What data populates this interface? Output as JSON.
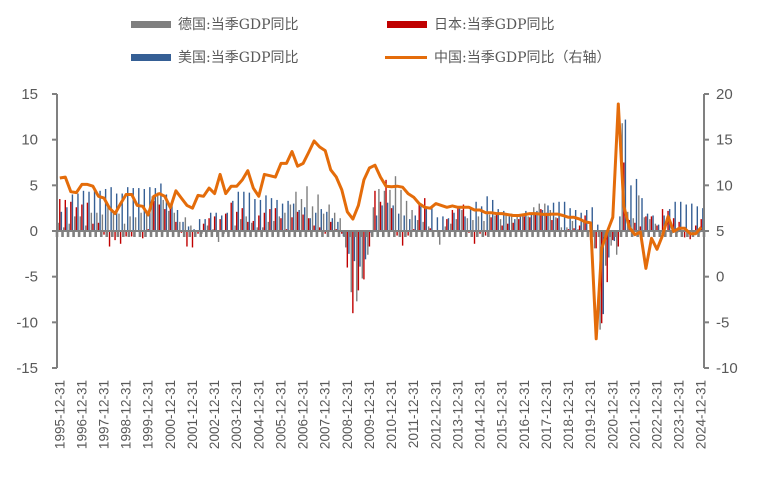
{
  "chart_data": {
    "type": "bar+line",
    "legend": [
      {
        "label": "德国:当季GDP同比",
        "color": "#7f7f7f",
        "kind": "bar"
      },
      {
        "label": "日本:当季GDP同比",
        "color": "#c00000",
        "kind": "bar"
      },
      {
        "label": "美国:当季GDP同比",
        "color": "#355f95",
        "kind": "bar"
      },
      {
        "label": "中国:当季GDP同比（右轴）",
        "color": "#e46c0a",
        "kind": "line"
      }
    ],
    "legend_placement": "top",
    "left_axis": {
      "ylim": [
        -15,
        15
      ],
      "ticks": [
        "15",
        "10",
        "5",
        "0",
        "-5",
        "-10",
        "-15"
      ]
    },
    "right_axis": {
      "ylim": [
        -10,
        20
      ],
      "ticks": [
        "20",
        "15",
        "10",
        "5",
        "0",
        "-5",
        "-10"
      ]
    },
    "x_tick_labels": [
      "1995-12-31",
      "1996-12-31",
      "1997-12-31",
      "1998-12-31",
      "1999-12-31",
      "2000-12-31",
      "2001-12-31",
      "2002-12-31",
      "2003-12-31",
      "2004-12-31",
      "2005-12-31",
      "2006-12-31",
      "2007-12-31",
      "2008-12-31",
      "2009-12-31",
      "2010-12-31",
      "2011-12-31",
      "2012-12-31",
      "2013-12-31",
      "2014-12-31",
      "2015-12-31",
      "2016-12-31",
      "2017-12-31",
      "2018-12-31",
      "2019-12-31",
      "2020-12-31",
      "2021-12-31",
      "2022-12-31",
      "2023-12-31",
      "2024-12-31"
    ],
    "x_range": [
      "1995-12-31",
      "2024-12-31"
    ],
    "x_frequency": "quarterly",
    "grid": false,
    "series": [
      {
        "name": "德国:当季GDP同比",
        "axis": "left",
        "type": "bar",
        "color": "#7f7f7f",
        "values": [
          0.9,
          0.4,
          0.8,
          1.6,
          1.6,
          0.6,
          2.0,
          2.0,
          1.8,
          2.8,
          2.0,
          1.9,
          0.8,
          1.6,
          1.5,
          2.0,
          2.3,
          3.8,
          4.2,
          3.4,
          2.2,
          2.0,
          1.0,
          1.5,
          0.6,
          0.0,
          -0.3,
          0.6,
          0.2,
          -1.2,
          -0.3,
          0.1,
          0.6,
          1.3,
          1.6,
          0.9,
          0.4,
          0.4,
          1.0,
          1.1,
          1.6,
          2.0,
          2.9,
          4.3,
          3.5,
          4.9,
          2.7,
          4.0,
          1.9,
          2.9,
          2.0,
          1.4,
          -1.8,
          -6.7,
          -7.7,
          -5.2,
          -2.6,
          2.6,
          4.6,
          4.4,
          4.5,
          6.0,
          4.5,
          3.3,
          2.3,
          1.2,
          1.0,
          0.5,
          0.0,
          -1.5,
          0.5,
          0.8,
          1.3,
          2.3,
          1.4,
          1.2,
          1.6,
          1.1,
          1.8,
          1.7,
          1.3,
          1.7,
          1.9,
          1.6,
          1.8,
          1.6,
          2.6,
          3.0,
          3.0,
          2.3,
          1.5,
          0.4,
          0.4,
          1.1,
          0.2,
          1.0,
          0.1,
          -1.9,
          -10.8,
          -3.8,
          -1.6,
          -2.6,
          11.8,
          2.1,
          1.4,
          3.9,
          1.5,
          1.3,
          0.8,
          -0.3,
          0.1,
          -0.3,
          -0.2,
          -0.1,
          -0.3,
          -0.3,
          -0.2
        ]
      },
      {
        "name": "日本:当季GDP同比",
        "axis": "left",
        "type": "bar",
        "color": "#c00000",
        "values": [
          3.5,
          3.4,
          3.2,
          2.6,
          2.9,
          3.1,
          0.8,
          0.9,
          -0.4,
          -1.7,
          -1.0,
          -1.4,
          -0.6,
          -0.6,
          0.1,
          -0.8,
          0.2,
          3.3,
          2.9,
          2.4,
          2.5,
          1.0,
          -0.2,
          -1.7,
          -1.8,
          -0.3,
          0.8,
          1.4,
          1.6,
          1.3,
          1.9,
          3.1,
          2.1,
          2.5,
          1.0,
          1.1,
          1.7,
          2.0,
          2.4,
          2.5,
          1.4,
          0.2,
          1.5,
          2.1,
          1.8,
          1.4,
          0.6,
          0.4,
          -0.3,
          1.0,
          0.2,
          -0.3,
          -4.0,
          -9.0,
          -6.5,
          -5.3,
          -1.7,
          4.4,
          3.2,
          5.6,
          2.5,
          -0.5,
          -1.6,
          -0.5,
          0.2,
          3.0,
          3.6,
          0.3,
          0.0,
          0.1,
          1.3,
          2.3,
          2.6,
          2.9,
          -0.2,
          -1.4,
          -0.3,
          -0.5,
          1.5,
          1.8,
          0.6,
          0.8,
          0.9,
          1.3,
          1.6,
          1.5,
          1.8,
          2.4,
          2.0,
          1.2,
          1.4,
          0.1,
          0.2,
          0.3,
          0.6,
          1.7,
          -1.0,
          -1.9,
          -10.1,
          -5.6,
          -1.0,
          -1.7,
          7.5,
          1.2,
          0.9,
          0.5,
          1.6,
          1.6,
          0.6,
          2.4,
          2.2,
          1.4,
          1.0,
          -0.7,
          -0.9,
          0.6,
          1.3
        ]
      },
      {
        "name": "美国:当季GDP同比",
        "axis": "left",
        "type": "bar",
        "color": "#355f95",
        "values": [
          2.1,
          2.6,
          4.0,
          4.1,
          4.4,
          4.3,
          4.6,
          4.4,
          4.6,
          4.8,
          4.1,
          4.1,
          4.8,
          4.7,
          4.7,
          4.6,
          4.8,
          4.7,
          5.2,
          4.0,
          3.0,
          2.3,
          1.0,
          0.5,
          0.2,
          1.3,
          1.3,
          2.0,
          2.0,
          1.7,
          2.0,
          3.3,
          4.3,
          4.3,
          4.2,
          3.5,
          3.4,
          3.9,
          3.6,
          3.4,
          3.0,
          3.3,
          3.0,
          2.3,
          2.6,
          1.4,
          2.0,
          2.4,
          2.1,
          1.4,
          1.0,
          -0.6,
          -2.5,
          -3.3,
          -3.9,
          -3.1,
          -0.2,
          1.7,
          2.8,
          3.1,
          2.8,
          1.9,
          1.7,
          1.3,
          1.7,
          2.7,
          2.4,
          2.5,
          1.5,
          1.6,
          1.4,
          2.0,
          2.6,
          1.6,
          2.5,
          3.2,
          2.7,
          3.8,
          3.4,
          2.4,
          2.2,
          1.6,
          1.3,
          1.6,
          2.2,
          1.9,
          2.2,
          2.3,
          2.8,
          3.1,
          3.2,
          3.2,
          2.5,
          2.3,
          2.0,
          2.3,
          2.6,
          0.7,
          -9.1,
          -2.9,
          -1.1,
          1.6,
          12.2,
          5.0,
          5.7,
          3.6,
          1.9,
          1.7,
          0.7,
          1.7,
          2.4,
          3.2,
          3.2,
          2.9,
          3.0,
          2.7,
          2.5
        ]
      },
      {
        "name": "中国:当季GDP同比（右轴）",
        "axis": "right",
        "type": "line",
        "color": "#e46c0a",
        "values": [
          10.8,
          10.9,
          9.3,
          9.2,
          10.1,
          10.1,
          9.9,
          8.8,
          8.6,
          7.5,
          6.9,
          8.0,
          9.0,
          9.0,
          7.8,
          7.7,
          6.75,
          8.8,
          9.1,
          8.8,
          7.55,
          9.4,
          8.6,
          7.8,
          7.5,
          8.9,
          8.8,
          9.7,
          9.1,
          11.2,
          9.1,
          9.9,
          9.9,
          10.6,
          11.6,
          9.7,
          8.8,
          11.2,
          11.05,
          10.9,
          12.4,
          12.4,
          13.7,
          12.1,
          12.4,
          13.6,
          14.85,
          14.2,
          13.8,
          11.7,
          10.9,
          9.5,
          7.1,
          6.3,
          7.8,
          10.6,
          11.9,
          12.2,
          10.9,
          9.9,
          9.85,
          9.9,
          9.8,
          9.1,
          8.7,
          8.0,
          7.6,
          7.5,
          8.0,
          7.8,
          7.6,
          7.75,
          7.6,
          7.6,
          7.6,
          7.3,
          7.3,
          7.0,
          7.0,
          6.9,
          6.9,
          6.8,
          6.7,
          6.7,
          6.8,
          6.9,
          6.9,
          6.85,
          6.8,
          6.85,
          6.85,
          6.7,
          6.5,
          6.5,
          6.3,
          6.0,
          5.9,
          -6.8,
          3.1,
          4.9,
          6.5,
          18.9,
          7.7,
          5.4,
          4.6,
          4.9,
          0.9,
          4.2,
          3.0,
          4.5,
          6.6,
          4.95,
          5.3,
          5.3,
          4.7,
          4.7,
          5.4
        ]
      }
    ]
  }
}
